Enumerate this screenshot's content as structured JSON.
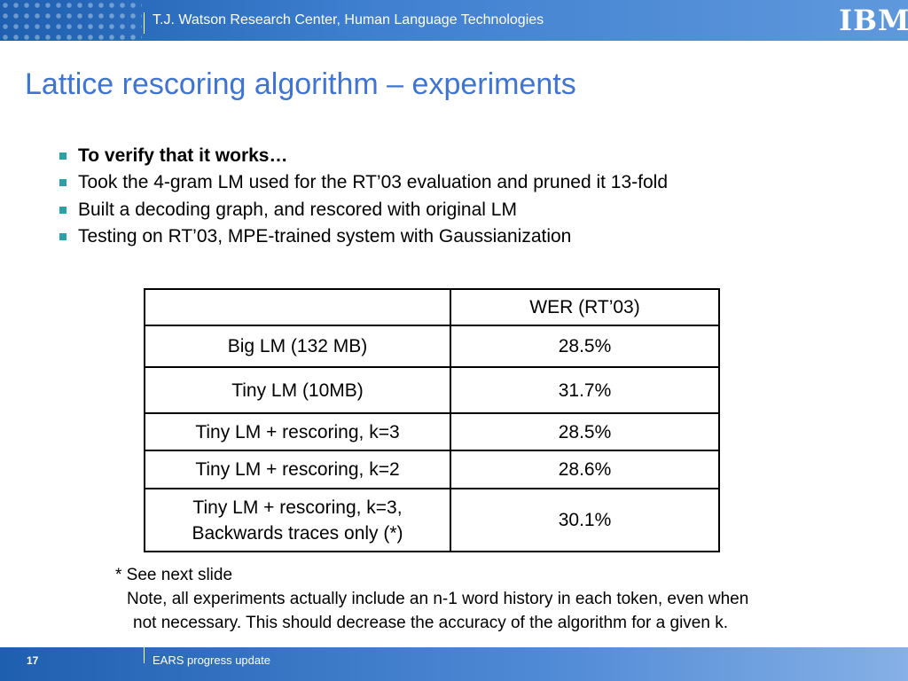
{
  "header": {
    "center": "T.J. Watson Research Center, Human Language Technologies",
    "logo": "IBM"
  },
  "title": "Lattice rescoring algorithm – experiments",
  "bullets": [
    "To verify that it works…",
    "Took the 4-gram LM used for the RT’03 evaluation and pruned it 13-fold",
    "Built a decoding graph, and rescored with original LM",
    "Testing on RT’03, MPE-trained system with Gaussianization"
  ],
  "table": {
    "header": [
      "WER (RT’03)"
    ],
    "rows": [
      [
        [
          "Big LM (132 MB)"
        ],
        "28.5%"
      ],
      [
        [
          "Tiny LM (10MB)"
        ],
        "31.7%"
      ],
      [
        [
          "Tiny LM + rescoring, k=3"
        ],
        "28.5%"
      ],
      [
        [
          "Tiny LM + rescoring, k=2"
        ],
        "28.6%"
      ],
      [
        [
          "Tiny LM + rescoring, k=3,",
          "Backwards traces only (*)"
        ],
        "30.1%"
      ]
    ]
  },
  "notes": [
    "* See next slide",
    "Note, all experiments actually include an n-1 word history in each token, even when",
    "not necessary.  This should decrease the accuracy of the algorithm for a given k."
  ],
  "footer": {
    "page": "17",
    "text": "EARS progress update"
  }
}
